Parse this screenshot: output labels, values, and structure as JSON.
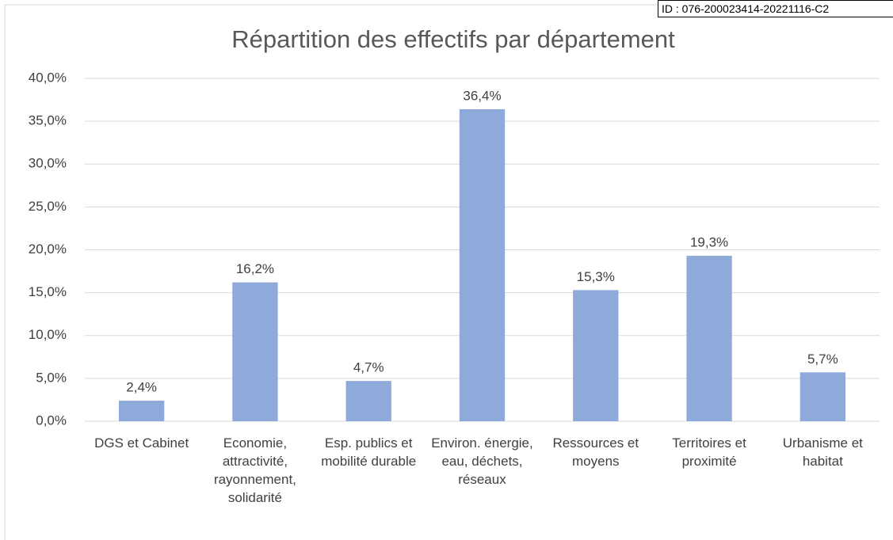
{
  "stamp": "ID : 076-200023414-20221116-C2",
  "chart_data": {
    "type": "bar",
    "title": "Répartition des effectifs par département",
    "categories": [
      "DGS et Cabinet",
      "Economie, attractivité, rayonnement, solidarité",
      "Esp. publics et mobilité durable",
      "Environ. énergie, eau, déchets, réseaux",
      "Ressources et moyens",
      "Territoires et proximité",
      "Urbanisme et habitat"
    ],
    "values": [
      2.4,
      16.2,
      4.7,
      36.4,
      15.3,
      19.3,
      5.7
    ],
    "value_labels": [
      "2,4%",
      "16,2%",
      "4,7%",
      "36,4%",
      "15,3%",
      "19,3%",
      "5,7%"
    ],
    "color": "#8eaadb",
    "ylim": [
      0,
      40
    ],
    "yticks": [
      {
        "value": 0,
        "label": "0,0%"
      },
      {
        "value": 5,
        "label": "5,0%"
      },
      {
        "value": 10,
        "label": "10,0%"
      },
      {
        "value": 15,
        "label": "15,0%"
      },
      {
        "value": 20,
        "label": "20,0%"
      },
      {
        "value": 25,
        "label": "25,0%"
      },
      {
        "value": 30,
        "label": "30,0%"
      },
      {
        "value": 35,
        "label": "35,0%"
      },
      {
        "value": 40,
        "label": "40,0%"
      }
    ],
    "grid": true
  }
}
